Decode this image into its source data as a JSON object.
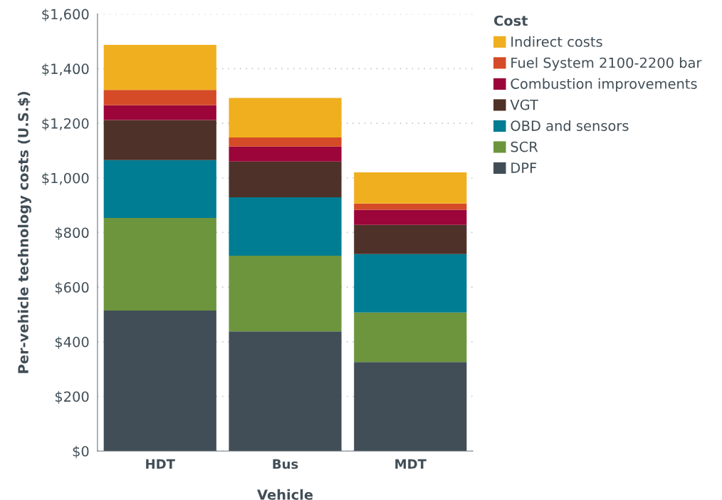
{
  "chart_data": {
    "type": "bar",
    "stacked": true,
    "xlabel": "Vehicle",
    "ylabel": "Per-vehicle technology costs (U.S.$)",
    "legend_title": "Cost",
    "categories": [
      "HDT",
      "Bus",
      "MDT"
    ],
    "series": [
      {
        "name": "DPF",
        "color": "#414e57",
        "values": [
          514,
          438,
          326
        ]
      },
      {
        "name": "SCR",
        "color": "#6c953d",
        "values": [
          339,
          277,
          181
        ]
      },
      {
        "name": "OBD and sensors",
        "color": "#007c93",
        "values": [
          212,
          214,
          214
        ]
      },
      {
        "name": "VGT",
        "color": "#4e3128",
        "values": [
          147,
          131,
          107
        ]
      },
      {
        "name": "Combustion improvements",
        "color": "#9b0539",
        "values": [
          54,
          55,
          55
        ]
      },
      {
        "name": "Fuel System 2100-2200 bar",
        "color": "#d54a27",
        "values": [
          56,
          33,
          23
        ]
      },
      {
        "name": "Indirect costs",
        "color": "#f0af1f",
        "values": [
          165,
          145,
          114
        ]
      }
    ],
    "ylim": [
      0,
      1600
    ],
    "yticks": [
      {
        "value": 0,
        "label": "$0"
      },
      {
        "value": 200,
        "label": "$200"
      },
      {
        "value": 400,
        "label": "$400"
      },
      {
        "value": 600,
        "label": "$600"
      },
      {
        "value": 800,
        "label": "$800"
      },
      {
        "value": 1000,
        "label": "$1,000"
      },
      {
        "value": 1200,
        "label": "$1,200"
      },
      {
        "value": 1400,
        "label": "$1,400"
      },
      {
        "value": 1600,
        "label": "$1,600"
      }
    ],
    "grid": "y",
    "legend": "top right"
  }
}
